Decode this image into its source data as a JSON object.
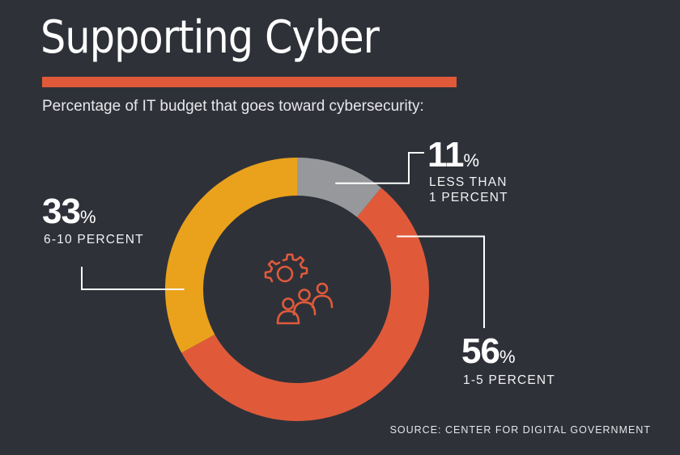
{
  "title": "Supporting Cyber",
  "subtitle": "Percentage of IT budget that goes toward cybersecurity:",
  "source": "SOURCE: CENTER FOR DIGITAL GOVERNMENT",
  "colors": {
    "background": "#2f3139",
    "accent": "#e05a3a",
    "gray": "#97989c",
    "orange": "#e05a3a",
    "yellow": "#eaa21c"
  },
  "chart_data": {
    "type": "pie",
    "variant": "donut",
    "center_icon": "gear-people-icon",
    "title": "Supporting Cyber",
    "subtitle": "Percentage of IT budget that goes toward cybersecurity:",
    "slices": [
      {
        "label": "LESS THAN 1 PERCENT",
        "label_lines": [
          "LESS THAN",
          "1 PERCENT"
        ],
        "value": 11,
        "value_text": "11",
        "color": "#97989c"
      },
      {
        "label": "1-5 PERCENT",
        "label_lines": [
          "1-5 PERCENT"
        ],
        "value": 56,
        "value_text": "56",
        "color": "#e05a3a"
      },
      {
        "label": "6-10 PERCENT",
        "label_lines": [
          "6-10 PERCENT"
        ],
        "value": 33,
        "value_text": "33",
        "color": "#eaa21c"
      }
    ],
    "percent_symbol": "%"
  }
}
